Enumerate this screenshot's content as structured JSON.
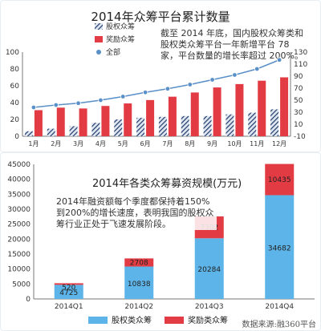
{
  "chart_data": [
    {
      "type": "bar",
      "title": "2014年众筹平台累计数量",
      "categories": [
        "1月",
        "2月",
        "3月",
        "4月",
        "5月",
        "6月",
        "7月",
        "8月",
        "9月",
        "10月",
        "11月",
        "12月"
      ],
      "series": [
        {
          "name": "股权众筹",
          "kind": "bar",
          "axis": "left",
          "values": [
            6,
            9,
            12,
            16,
            20,
            22,
            23,
            24,
            24,
            26,
            28,
            32
          ]
        },
        {
          "name": "奖励众筹",
          "kind": "bar",
          "axis": "left",
          "values": [
            31,
            34,
            33,
            36,
            39,
            43,
            47,
            52,
            58,
            62,
            66,
            70
          ]
        },
        {
          "name": "全部",
          "kind": "line",
          "axis": "right",
          "values": [
            38,
            42,
            45,
            50,
            56,
            63,
            69,
            76,
            84,
            92,
            102,
            117
          ]
        }
      ],
      "left_axis": {
        "ticks": [
          0,
          20,
          40,
          60,
          80,
          100
        ],
        "ylim": [
          0,
          100
        ]
      },
      "right_axis": {
        "ticks": [
          -10,
          10,
          30,
          50,
          70,
          90,
          110,
          130
        ],
        "ylim": [
          -10,
          130
        ]
      },
      "grid": false,
      "legend": "top-left",
      "annotation": "截至 2014 年底，国内股权众筹类和股权类众筹平台一年新增平台 78 家，平台数量的增长率超过 200%。"
    },
    {
      "type": "bar",
      "stacked": true,
      "title": "2014年各类众筹募资规模(万元)",
      "categories": [
        "2014Q1",
        "2014Q2",
        "2014Q3",
        "2014Q4"
      ],
      "series": [
        {
          "name": "股权类众筹",
          "values": [
            4725,
            10838,
            20284,
            34682
          ]
        },
        {
          "name": "奖励类众筹",
          "values": [
            520,
            2708,
            7302,
            10435
          ]
        }
      ],
      "y_axis": {
        "ticks": [
          0,
          5000,
          10000,
          15000,
          20000,
          25000,
          30000,
          35000,
          40000,
          45000
        ]
      },
      "ylim": [
        0,
        45000
      ],
      "grid": false,
      "legend": "bottom",
      "annotation": "2014年融资额每个季度都保持着150%到200%的增长速度，表明我国的股权众筹行业正处于飞速发展阶段。"
    }
  ],
  "colors": {
    "equity_top": "#1f3a6b",
    "reward": "#e23b44",
    "total_line": "#5a90c8",
    "equity_bottom": "#5db4e8",
    "axis": "#777777"
  },
  "legend_bottom": {
    "equity": "股权类众筹",
    "reward": "奖励类众筹"
  },
  "source": "数据来源:融360平台"
}
